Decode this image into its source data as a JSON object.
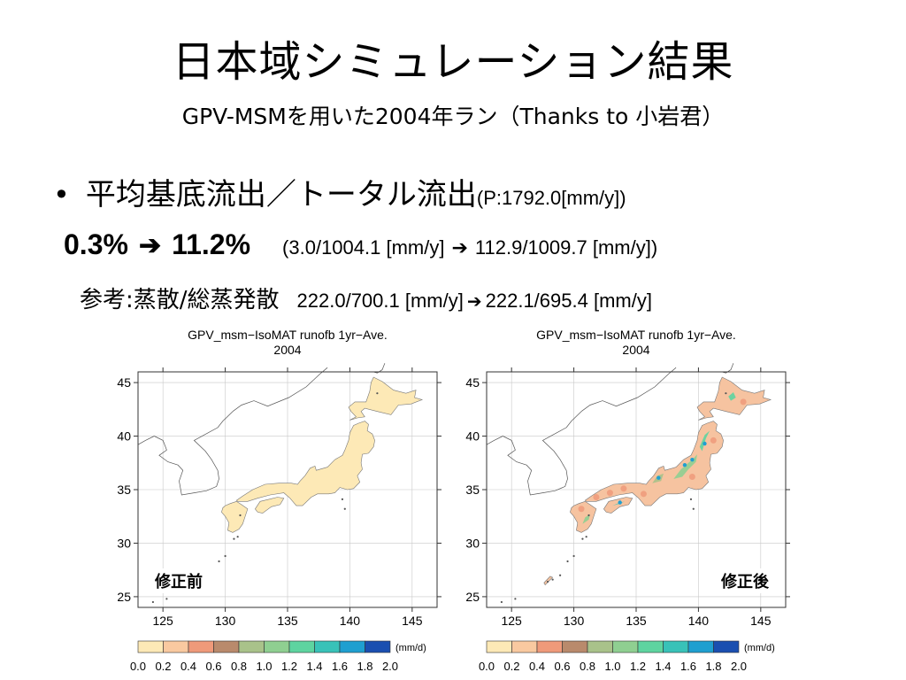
{
  "slide": {
    "title": "日本域シミュレーション結果",
    "subtitle": "GPV-MSMを用いた2004年ラン（Thanks to 小岩君）",
    "bullet": {
      "symbol": "•",
      "text": "平均基底流出／トータル流出",
      "note": "(P:1792.0[mm/y])"
    },
    "ratio": {
      "before": "0.3%",
      "arrow": "➔",
      "after": "11.2%",
      "detail_before": "(3.0/1004.1 [mm/y]",
      "detail_arrow": "➔",
      "detail_after": "112.9/1009.7 [mm/y])"
    },
    "reference": {
      "label": "参考:蒸散/総蒸発散",
      "detail_before": "222.0/700.1 [mm/y]",
      "detail_arrow": "➔",
      "detail_after": "222.1/695.4 [mm/y]"
    }
  },
  "chart_data": [
    {
      "type": "heatmap",
      "title": "GPV_msm−IsoMAT runofb 1yr−Ave.",
      "subtitle": "2004",
      "label": "修正前",
      "xlim": [
        123,
        147
      ],
      "ylim": [
        24,
        46
      ],
      "xticks": [
        "125",
        "130",
        "135",
        "140",
        "145"
      ],
      "yticks": [
        "25",
        "30",
        "35",
        "40",
        "45"
      ],
      "grid": true,
      "colorbar": {
        "ticks": [
          "0.0",
          "0.2",
          "0.4",
          "0.6",
          "0.8",
          "1.0",
          "1.2",
          "1.4",
          "1.6",
          "1.8",
          "2.0"
        ],
        "unit": "(mm/d)",
        "colors": [
          "#fde9b6",
          "#f9c9a0",
          "#ef9a7a",
          "#b98a6c",
          "#a9c28a",
          "#8fcf91",
          "#5ed4a0",
          "#39c2b8",
          "#1f9fd0",
          "#1a4fb0"
        ]
      },
      "land_color": "#fde9b6",
      "value_summary": "nearly uniform 0.0–0.2 mm/d over Japan"
    },
    {
      "type": "heatmap",
      "title": "GPV_msm−IsoMAT runofb 1yr−Ave.",
      "subtitle": "2004",
      "label": "修正後",
      "xlim": [
        123,
        147
      ],
      "ylim": [
        24,
        46
      ],
      "xticks": [
        "125",
        "130",
        "135",
        "140",
        "145"
      ],
      "yticks": [
        "25",
        "30",
        "35",
        "40",
        "45"
      ],
      "grid": true,
      "colorbar": {
        "ticks": [
          "0.0",
          "0.2",
          "0.4",
          "0.6",
          "0.8",
          "1.0",
          "1.2",
          "1.4",
          "1.6",
          "1.8",
          "2.0"
        ],
        "unit": "(mm/d)",
        "colors": [
          "#fde9b6",
          "#f9c9a0",
          "#ef9a7a",
          "#b98a6c",
          "#a9c28a",
          "#8fcf91",
          "#5ed4a0",
          "#39c2b8",
          "#1f9fd0",
          "#1a4fb0"
        ]
      },
      "land_color": "#f6c3a0",
      "value_summary": "mostly 0.2–0.6 mm/d with patches of 0.8–1.8 mm/d along mountain ranges"
    }
  ]
}
